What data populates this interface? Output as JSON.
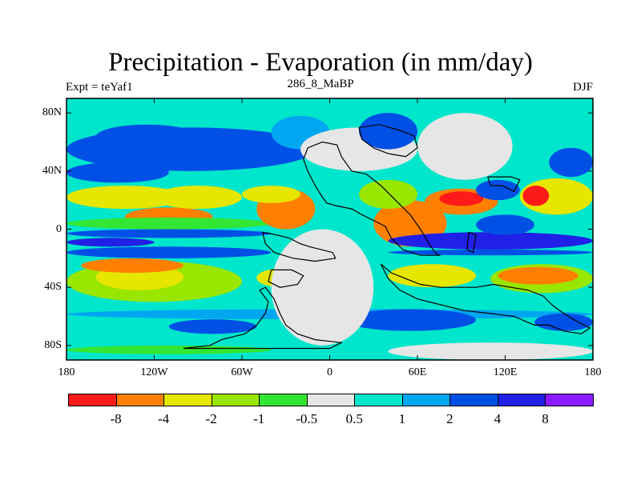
{
  "title": "Precipitation - Evaporation (in mm/day)",
  "subtitle_left": "Expt = teYaf1",
  "subtitle_center": "286_8_MaBP",
  "subtitle_right": "DJF",
  "y_ticks": [
    "80N",
    "40N",
    "0",
    "40S",
    "80S"
  ],
  "y_tick_values": [
    80,
    40,
    0,
    -40,
    -80
  ],
  "x_ticks": [
    "180",
    "120W",
    "60W",
    "0",
    "60E",
    "120E",
    "180"
  ],
  "x_tick_values": [
    -180,
    -120,
    -60,
    0,
    60,
    120,
    180
  ],
  "colorbar": {
    "colors": [
      "#ff1a1a",
      "#ff8000",
      "#e6e600",
      "#99e600",
      "#33e633",
      "#e6e6e6",
      "#00e6cc",
      "#00a6f0",
      "#0050e6",
      "#2020e6",
      "#8c1aff"
    ],
    "labels": [
      "-8",
      "-4",
      "-2",
      "-1",
      "-0.5",
      "0.5",
      "1",
      "2",
      "4",
      "8"
    ]
  },
  "chart_data": {
    "type": "heatmap",
    "title": "Precipitation - Evaporation (in mm/day)",
    "xlim": [
      -180,
      180
    ],
    "ylim": [
      -90,
      90
    ],
    "levels": [
      -8,
      -4,
      -2,
      -1,
      -0.5,
      0.5,
      1,
      2,
      4,
      8
    ],
    "regions": [
      {
        "name": "",
        "value": 0.7,
        "lon": [
          -180,
          180
        ],
        "lat": [
          -90,
          90
        ]
      },
      {
        "name": "",
        "value": 3,
        "lon": [
          -180,
          -10
        ],
        "lat": [
          40,
          70
        ]
      },
      {
        "name": "",
        "value": 3,
        "lon": [
          -180,
          -110
        ],
        "lat": [
          32,
          46
        ]
      },
      {
        "name": "",
        "value": 3,
        "lon": [
          150,
          180
        ],
        "lat": [
          36,
          56
        ]
      },
      {
        "name": "",
        "value": 1.5,
        "lon": [
          -40,
          0
        ],
        "lat": [
          55,
          78
        ]
      },
      {
        "name": "",
        "value": -3,
        "lon": [
          -180,
          -100
        ],
        "lat": [
          14,
          30
        ]
      },
      {
        "name": "",
        "value": -5,
        "lon": [
          -140,
          -80
        ],
        "lat": [
          2,
          15
        ]
      },
      {
        "name": "",
        "value": -3,
        "lon": [
          -120,
          -60
        ],
        "lat": [
          14,
          30
        ]
      },
      {
        "name": "",
        "value": -1,
        "lon": [
          -180,
          -40
        ],
        "lat": [
          0,
          8
        ]
      },
      {
        "name": "",
        "value": -5,
        "lon": [
          -50,
          -10
        ],
        "lat": [
          0,
          28
        ]
      },
      {
        "name": "",
        "value": -3,
        "lon": [
          -60,
          -20
        ],
        "lat": [
          18,
          30
        ]
      },
      {
        "name": "",
        "value": 3,
        "lon": [
          -180,
          -40
        ],
        "lat": [
          -6,
          0
        ]
      },
      {
        "name": "",
        "value": 6,
        "lon": [
          -180,
          -120
        ],
        "lat": [
          -12,
          -6
        ]
      },
      {
        "name": "",
        "value": 3,
        "lon": [
          -180,
          -40
        ],
        "lat": [
          -20,
          -12
        ]
      },
      {
        "name": "",
        "value": -1.5,
        "lon": [
          -180,
          -60
        ],
        "lat": [
          -50,
          -22
        ]
      },
      {
        "name": "",
        "value": -3,
        "lon": [
          -160,
          -100
        ],
        "lat": [
          -42,
          -24
        ]
      },
      {
        "name": "",
        "value": -5,
        "lon": [
          -170,
          -100
        ],
        "lat": [
          -30,
          -20
        ]
      },
      {
        "name": "",
        "value": -3,
        "lon": [
          -50,
          -15
        ],
        "lat": [
          -40,
          -27
        ]
      },
      {
        "name": "",
        "value": 1.5,
        "lon": [
          -180,
          180
        ],
        "lat": [
          -62,
          -55
        ]
      },
      {
        "name": "",
        "value": 3,
        "lon": [
          -110,
          -50
        ],
        "lat": [
          -72,
          -62
        ]
      },
      {
        "name": "",
        "value": 3,
        "lon": [
          10,
          100
        ],
        "lat": [
          -70,
          -55
        ]
      },
      {
        "name": "",
        "value": 3,
        "lon": [
          140,
          180
        ],
        "lat": [
          -70,
          -58
        ]
      },
      {
        "name": "",
        "value": -0.8,
        "lon": [
          -180,
          -40
        ],
        "lat": [
          -86,
          -80
        ]
      },
      {
        "name": "",
        "value": 0,
        "lon": [
          40,
          180
        ],
        "lat": [
          -90,
          -78
        ]
      },
      {
        "name": "",
        "value": 0,
        "lon": [
          -40,
          30
        ],
        "lat": [
          -80,
          0
        ]
      },
      {
        "name": "",
        "value": -5,
        "lon": [
          30,
          80
        ],
        "lat": [
          -12,
          20
        ]
      },
      {
        "name": "",
        "value": -5,
        "lon": [
          65,
          115
        ],
        "lat": [
          10,
          28
        ]
      },
      {
        "name": "",
        "value": -10,
        "lon": [
          75,
          105
        ],
        "lat": [
          16,
          26
        ]
      },
      {
        "name": "",
        "value": -2,
        "lon": [
          20,
          60
        ],
        "lat": [
          14,
          34
        ]
      },
      {
        "name": "",
        "value": 6,
        "lon": [
          40,
          180
        ],
        "lat": [
          -14,
          -2
        ]
      },
      {
        "name": "",
        "value": 3,
        "lon": [
          40,
          180
        ],
        "lat": [
          -18,
          -14
        ]
      },
      {
        "name": "",
        "value": -1.5,
        "lon": [
          110,
          180
        ],
        "lat": [
          -44,
          -24
        ]
      },
      {
        "name": "",
        "value": -5,
        "lon": [
          115,
          170
        ],
        "lat": [
          -38,
          -26
        ]
      },
      {
        "name": "",
        "value": -3,
        "lon": [
          40,
          100
        ],
        "lat": [
          -40,
          -24
        ]
      },
      {
        "name": "",
        "value": -3,
        "lon": [
          130,
          180
        ],
        "lat": [
          10,
          35
        ]
      },
      {
        "name": "",
        "value": -10,
        "lon": [
          132,
          150
        ],
        "lat": [
          16,
          30
        ]
      },
      {
        "name": "",
        "value": 3,
        "lon": [
          100,
          130
        ],
        "lat": [
          20,
          34
        ]
      },
      {
        "name": "",
        "value": 3,
        "lon": [
          100,
          140
        ],
        "lat": [
          -4,
          10
        ]
      },
      {
        "name": "",
        "value": 0,
        "lon": [
          60,
          125
        ],
        "lat": [
          34,
          80
        ]
      },
      {
        "name": "",
        "value": 0,
        "lon": [
          -20,
          60
        ],
        "lat": [
          40,
          70
        ]
      },
      {
        "name": "",
        "value": 3,
        "lon": [
          20,
          60
        ],
        "lat": [
          55,
          80
        ]
      },
      {
        "name": "",
        "value": 3,
        "lon": [
          -160,
          -90
        ],
        "lat": [
          55,
          72
        ]
      }
    ]
  }
}
